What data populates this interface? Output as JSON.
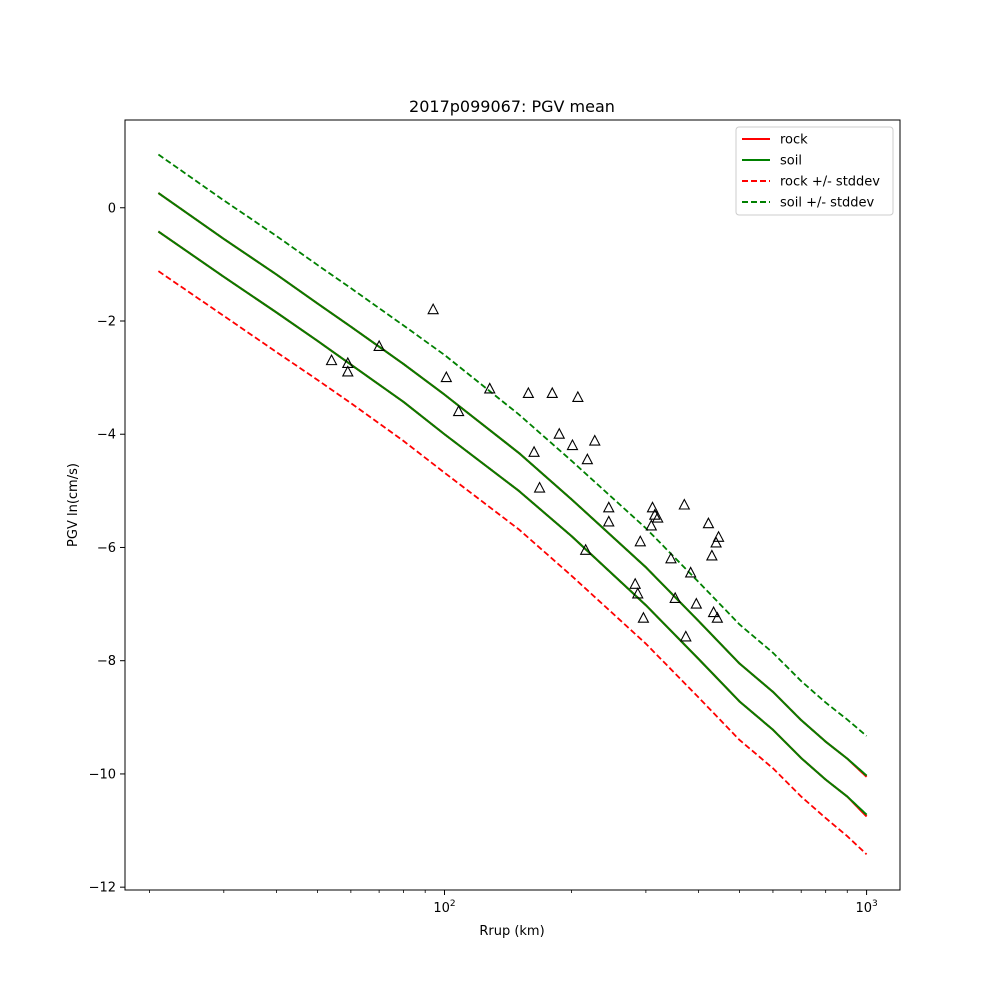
{
  "chart_data": {
    "type": "line",
    "title": "2017p099067: PGV mean",
    "xlabel": "Rrup (km)",
    "ylabel": "PGV ln(cm/s)",
    "xscale": "log",
    "xlim": [
      17.5,
      1200
    ],
    "ylim": [
      -12.05,
      1.55
    ],
    "xticks": [
      {
        "value": 100,
        "base": "10",
        "exp": "2"
      },
      {
        "value": 1000,
        "base": "10",
        "exp": "3"
      }
    ],
    "yticks": [
      0,
      -2,
      -4,
      -6,
      -8,
      -10,
      -12
    ],
    "grid": false,
    "legend": {
      "position": "top-right",
      "entries": [
        {
          "label": "rock",
          "color": "#ff0000",
          "style": "solid"
        },
        {
          "label": "soil",
          "color": "#008000",
          "style": "solid"
        },
        {
          "label": "rock +/- stddev",
          "color": "#ff0000",
          "style": "dashed"
        },
        {
          "label": "soil +/- stddev",
          "color": "#008000",
          "style": "dashed"
        }
      ]
    },
    "x": [
      21,
      30,
      40,
      50,
      60,
      80,
      100,
      150,
      200,
      300,
      400,
      500,
      600,
      700,
      800,
      900,
      1000
    ],
    "series": [
      {
        "name": "rock",
        "color": "#ff0000",
        "style": "solid",
        "values": [
          -0.42,
          -1.22,
          -1.85,
          -2.35,
          -2.77,
          -3.43,
          -4.0,
          -5.0,
          -5.8,
          -7.02,
          -7.97,
          -8.72,
          -9.22,
          -9.72,
          -10.1,
          -10.4,
          -10.75
        ]
      },
      {
        "name": "rock",
        "color": "#ff0000",
        "style": "solid",
        "values": [
          0.26,
          -0.55,
          -1.18,
          -1.69,
          -2.1,
          -2.76,
          -3.3,
          -4.33,
          -5.15,
          -6.35,
          -7.3,
          -8.05,
          -8.55,
          -9.05,
          -9.43,
          -9.73,
          -10.05
        ]
      },
      {
        "name": "soil",
        "color": "#008000",
        "style": "solid",
        "values": [
          -0.42,
          -1.22,
          -1.85,
          -2.35,
          -2.77,
          -3.43,
          -4.0,
          -5.0,
          -5.8,
          -7.02,
          -7.97,
          -8.72,
          -9.22,
          -9.72,
          -10.1,
          -10.4,
          -10.72
        ]
      },
      {
        "name": "soil",
        "color": "#008000",
        "style": "solid",
        "values": [
          0.26,
          -0.55,
          -1.18,
          -1.69,
          -2.1,
          -2.76,
          -3.3,
          -4.33,
          -5.15,
          -6.35,
          -7.3,
          -8.05,
          -8.55,
          -9.05,
          -9.43,
          -9.73,
          -10.03
        ]
      },
      {
        "name": "rock +/- stddev",
        "color": "#ff0000",
        "style": "dashed",
        "values": [
          -1.12,
          -1.91,
          -2.55,
          -3.04,
          -3.45,
          -4.12,
          -4.68,
          -5.68,
          -6.5,
          -7.7,
          -8.65,
          -9.4,
          -9.9,
          -10.4,
          -10.78,
          -11.1,
          -11.42
        ]
      },
      {
        "name": "rock +/- stddev",
        "color": "#ff0000",
        "style": "dashed",
        "values": [
          -0.42,
          -1.22,
          -1.85,
          -2.35,
          -2.77,
          -3.43,
          -4.0,
          -5.0,
          -5.8,
          -7.02,
          -7.97,
          -8.72,
          -9.22,
          -9.72,
          -10.1,
          -10.4,
          -10.75
        ]
      },
      {
        "name": "rock +/- stddev",
        "color": "#ff0000",
        "style": "dashed",
        "values": [
          0.26,
          -0.55,
          -1.18,
          -1.69,
          -2.1,
          -2.76,
          -3.3,
          -4.33,
          -5.15,
          -6.35,
          -7.3,
          -8.05,
          -8.55,
          -9.05,
          -9.43,
          -9.73,
          -10.05
        ]
      },
      {
        "name": "soil +/- stddev",
        "color": "#008000",
        "style": "dashed",
        "values": [
          -0.42,
          -1.22,
          -1.85,
          -2.35,
          -2.77,
          -3.43,
          -4.0,
          -5.0,
          -5.8,
          -7.02,
          -7.97,
          -8.72,
          -9.22,
          -9.72,
          -10.1,
          -10.4,
          -10.72
        ]
      },
      {
        "name": "soil +/- stddev",
        "color": "#008000",
        "style": "dashed",
        "values": [
          0.26,
          -0.55,
          -1.18,
          -1.69,
          -2.1,
          -2.76,
          -3.3,
          -4.33,
          -5.15,
          -6.35,
          -7.3,
          -8.05,
          -8.55,
          -9.05,
          -9.43,
          -9.73,
          -10.03
        ]
      },
      {
        "name": "soil +/- stddev",
        "color": "#008000",
        "style": "dashed",
        "values": [
          0.94,
          0.13,
          -0.5,
          -1.01,
          -1.42,
          -2.08,
          -2.6,
          -3.65,
          -4.47,
          -5.66,
          -6.61,
          -7.36,
          -7.86,
          -8.36,
          -8.74,
          -9.04,
          -9.33
        ]
      }
    ],
    "observations": {
      "marker": "triangle",
      "color": "#000000",
      "points": [
        [
          54,
          -2.7
        ],
        [
          59,
          -2.75
        ],
        [
          59,
          -2.9
        ],
        [
          70,
          -2.45
        ],
        [
          94,
          -1.8
        ],
        [
          101,
          -3.0
        ],
        [
          108,
          -3.6
        ],
        [
          128,
          -3.2
        ],
        [
          158,
          -3.28
        ],
        [
          163,
          -4.32
        ],
        [
          168,
          -4.95
        ],
        [
          180,
          -3.28
        ],
        [
          187,
          -4.0
        ],
        [
          201,
          -4.2
        ],
        [
          207,
          -3.35
        ],
        [
          216,
          -6.05
        ],
        [
          218,
          -4.45
        ],
        [
          227,
          -4.12
        ],
        [
          245,
          -5.3
        ],
        [
          245,
          -5.55
        ],
        [
          283,
          -6.65
        ],
        [
          287,
          -6.82
        ],
        [
          291,
          -5.9
        ],
        [
          296,
          -7.25
        ],
        [
          309,
          -5.62
        ],
        [
          311,
          -5.3
        ],
        [
          315,
          -5.43
        ],
        [
          320,
          -5.48
        ],
        [
          344,
          -6.2
        ],
        [
          352,
          -6.9
        ],
        [
          370,
          -5.25
        ],
        [
          373,
          -7.58
        ],
        [
          383,
          -6.45
        ],
        [
          395,
          -7.0
        ],
        [
          422,
          -5.58
        ],
        [
          430,
          -6.15
        ],
        [
          434,
          -7.15
        ],
        [
          440,
          -5.92
        ],
        [
          443,
          -7.25
        ],
        [
          446,
          -5.82
        ]
      ]
    }
  }
}
